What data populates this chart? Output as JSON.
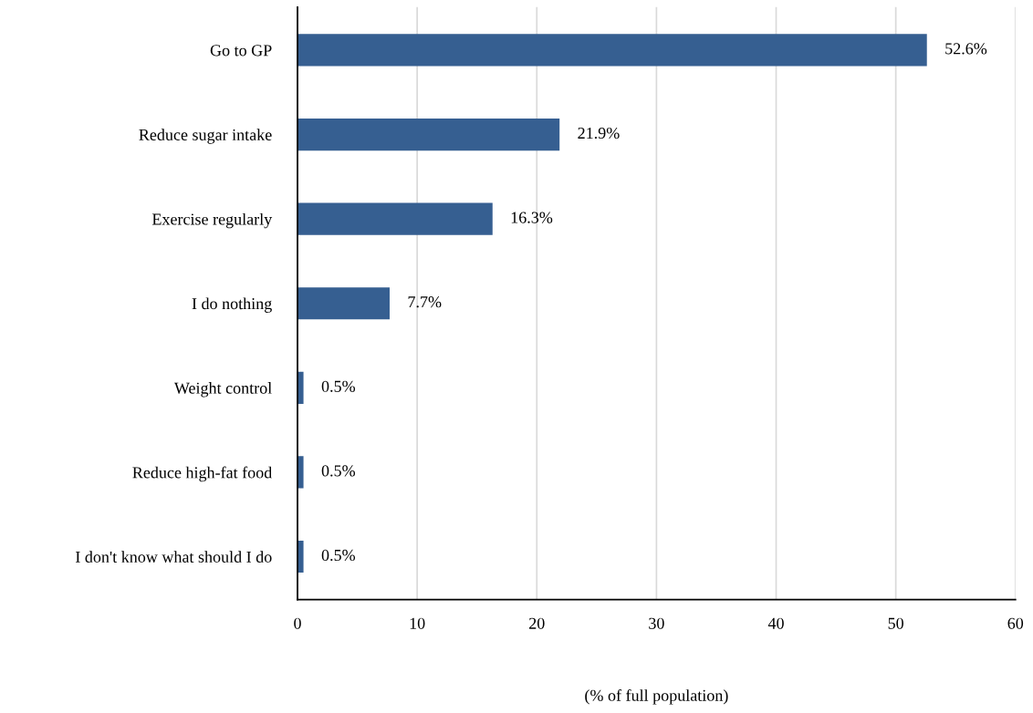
{
  "chart_data": {
    "type": "bar",
    "orientation": "horizontal",
    "xlabel": "(% of full population)",
    "categories": [
      "Go to GP",
      "Reduce sugar intake",
      "Exercise regularly",
      "I do nothing",
      "Weight control",
      "Reduce high-fat food",
      "I don't know what should I do"
    ],
    "values": [
      52.6,
      21.9,
      16.3,
      7.7,
      0.5,
      0.5,
      0.5
    ],
    "value_labels": [
      "52.6%",
      "21.9%",
      "16.3%",
      "7.7%",
      "0.5%",
      "0.5%",
      "0.5%"
    ],
    "color": "#365f91",
    "xlim": [
      0,
      60
    ],
    "xticks": [
      0,
      10,
      20,
      30,
      40,
      50,
      60
    ],
    "grid": "x",
    "legend": false
  }
}
